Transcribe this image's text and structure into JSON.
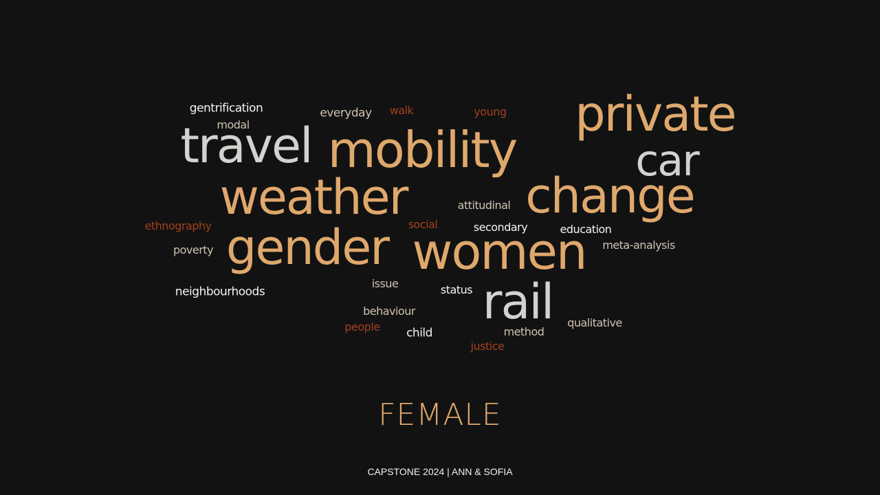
{
  "colors": {
    "background": "#121212",
    "gold": "#dfa86c",
    "silver": "#d2d2cf",
    "white": "#f4f4f4",
    "beige": "#cfc2b2",
    "rust": "#a3401f"
  },
  "word_cloud": [
    {
      "text": "private",
      "color": "gold"
    },
    {
      "text": "mobility",
      "color": "gold"
    },
    {
      "text": "travel",
      "color": "silver"
    },
    {
      "text": "car",
      "color": "silver"
    },
    {
      "text": "weather",
      "color": "gold"
    },
    {
      "text": "change",
      "color": "gold"
    },
    {
      "text": "gender",
      "color": "gold"
    },
    {
      "text": "women",
      "color": "gold"
    },
    {
      "text": "rail",
      "color": "silver"
    },
    {
      "text": "gentrification",
      "color": "white"
    },
    {
      "text": "modal",
      "color": "beige"
    },
    {
      "text": "everyday",
      "color": "beige"
    },
    {
      "text": "walk",
      "color": "rust"
    },
    {
      "text": "young",
      "color": "rust"
    },
    {
      "text": "attitudinal",
      "color": "beige"
    },
    {
      "text": "ethnography",
      "color": "rust"
    },
    {
      "text": "social",
      "color": "rust"
    },
    {
      "text": "secondary",
      "color": "white"
    },
    {
      "text": "education",
      "color": "white"
    },
    {
      "text": "poverty",
      "color": "beige"
    },
    {
      "text": "meta-analysis",
      "color": "beige"
    },
    {
      "text": "issue",
      "color": "beige"
    },
    {
      "text": "status",
      "color": "white"
    },
    {
      "text": "neighbourhoods",
      "color": "white"
    },
    {
      "text": "behaviour",
      "color": "beige"
    },
    {
      "text": "qualitative",
      "color": "beige"
    },
    {
      "text": "people",
      "color": "rust"
    },
    {
      "text": "child",
      "color": "white"
    },
    {
      "text": "method",
      "color": "beige"
    },
    {
      "text": "justice",
      "color": "rust"
    }
  ],
  "title": "FEMALE",
  "footer": "CAPSTONE 2024 | ANN & SOFIA"
}
